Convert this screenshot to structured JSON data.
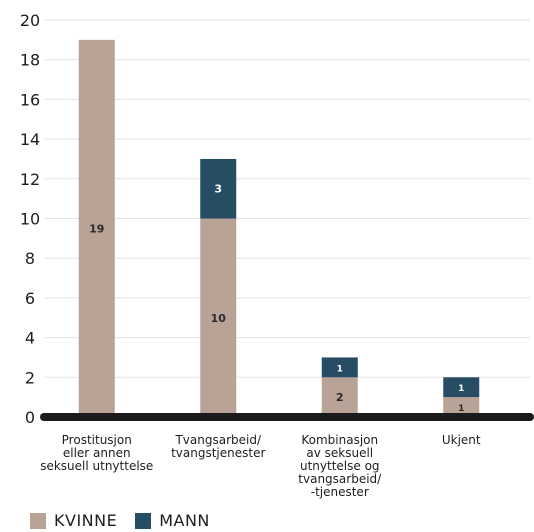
{
  "chart_data": {
    "type": "bar",
    "stacked": true,
    "categories": [
      "Prostitusjon\neller annen\nseksuell utnyttelse",
      "Tvangsarbeid/\ntvangstjenester",
      "Kombinasjon\nav seksuell\nutnyttelse og\ntvangsarbeid/\n-tjenester",
      "Ukjent"
    ],
    "series": [
      {
        "name": "KVINNE",
        "color": "#b9a397",
        "values": [
          19,
          10,
          2,
          1
        ]
      },
      {
        "name": "MANN",
        "color": "#264d63",
        "values": [
          0,
          3,
          1,
          1
        ]
      }
    ],
    "y_ticks": [
      0,
      2,
      4,
      6,
      8,
      10,
      12,
      14,
      16,
      18,
      20
    ],
    "ylim": [
      0,
      20
    ],
    "grid": true,
    "legend_position": "bottom-left"
  }
}
